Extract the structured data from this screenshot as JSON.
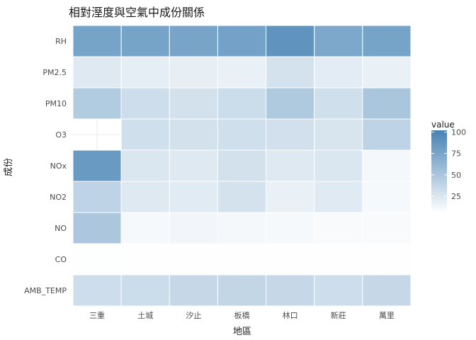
{
  "chart_data": {
    "type": "heatmap",
    "title": "相對溼度與空氣中成份關係",
    "xlabel": "地區",
    "ylabel": "成份",
    "x_categories": [
      "三重",
      "土城",
      "汐止",
      "板橋",
      "林口",
      "新莊",
      "萬里"
    ],
    "y_categories": [
      "RH",
      "PM2.5",
      "PM10",
      "O3",
      "NOx",
      "NO2",
      "NO",
      "CO",
      "AMB_TEMP"
    ],
    "values": [
      [
        74,
        74,
        73,
        75,
        86,
        70,
        74
      ],
      [
        18,
        14,
        13,
        12,
        23,
        15,
        12
      ],
      [
        42,
        27,
        24,
        28,
        43,
        26,
        46
      ],
      [
        null,
        26,
        24,
        26,
        25,
        21,
        35
      ],
      [
        81,
        20,
        18,
        24,
        18,
        20,
        6
      ],
      [
        35,
        18,
        16,
        23,
        12,
        17,
        5
      ],
      [
        45,
        5,
        7,
        6,
        5,
        4,
        4
      ],
      [
        1,
        0.5,
        0.5,
        0.5,
        0.5,
        0.5,
        0.5
      ],
      [
        27,
        28,
        31,
        33,
        31,
        27,
        31
      ]
    ],
    "value_range": [
      0,
      100
    ],
    "grid": true,
    "legend": {
      "title": "value",
      "placement": "right",
      "ticks": [
        25,
        50,
        75,
        100
      ],
      "color_low": "#ffffff",
      "color_high": "#4682b4"
    },
    "colors": {
      "missing": "#ffffff",
      "grid": "#ebebeb"
    }
  }
}
